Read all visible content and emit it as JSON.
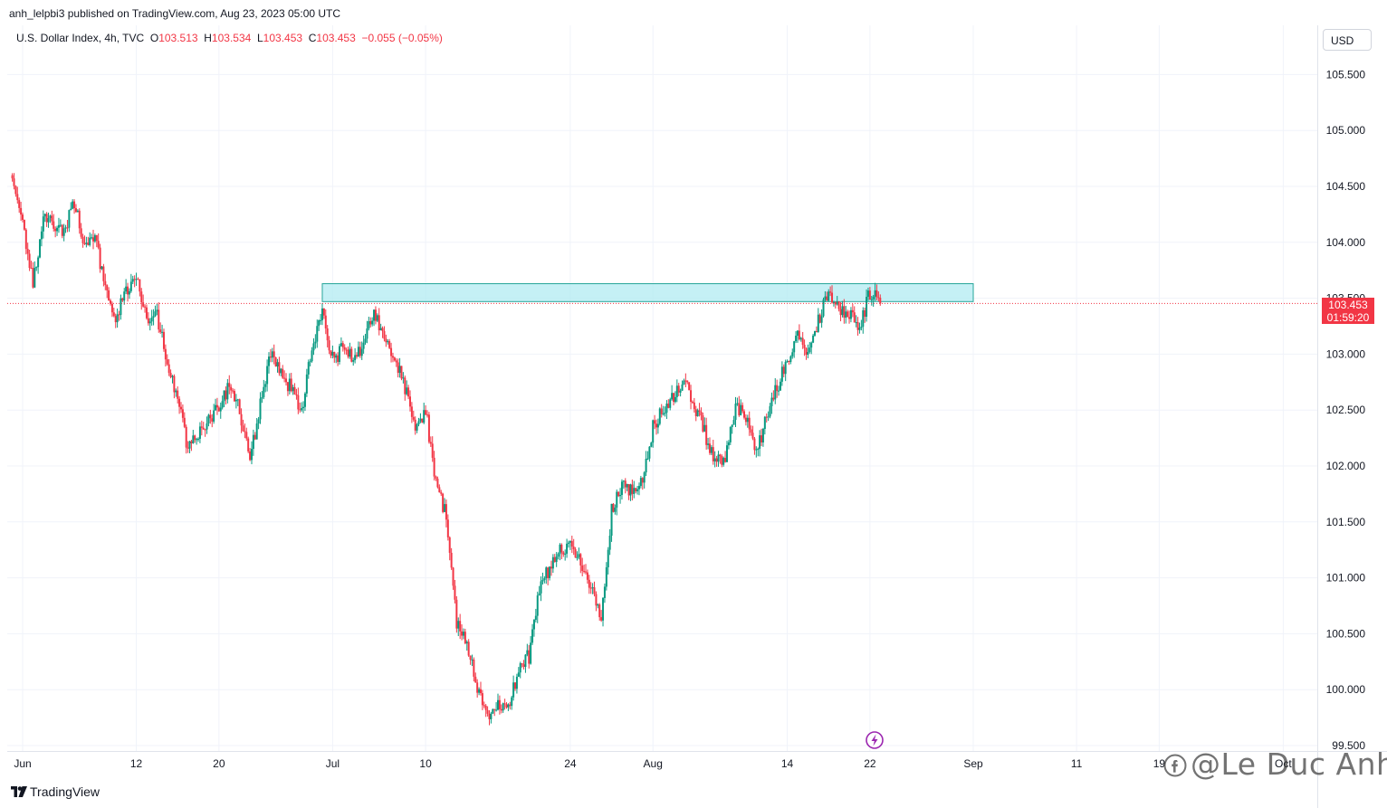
{
  "header": {
    "publisher_line": "anh_lelpbi3 published on TradingView.com, Aug 23, 2023 05:00 UTC"
  },
  "legend": {
    "symbol": "U.S. Dollar Index, 4h, TVC",
    "open_label": "O",
    "open": "103.513",
    "high_label": "H",
    "high": "103.534",
    "low_label": "L",
    "low": "103.453",
    "close_label": "C",
    "close": "103.453",
    "change": "−0.055 (−0.05%)"
  },
  "currency_button": "USD",
  "price_tag": {
    "price": "103.453",
    "countdown": "01:59:20"
  },
  "branding": {
    "logo_text": "TradingView",
    "watermark_text": "@Le Duc Anh"
  },
  "colors": {
    "up": "#089981",
    "down": "#f23645",
    "zone_fill": "#b2ebf2",
    "zone_border": "#26a69a",
    "grid": "#f0f3fa"
  },
  "icons": {
    "logo": "tradingview-logo-icon",
    "watermark": "facebook-icon",
    "event": "lightning-bolt-icon"
  },
  "chart_data": {
    "type": "candlestick",
    "timeframe": "4h",
    "y_ticks": [
      99.5,
      100.0,
      100.5,
      101.0,
      101.5,
      102.0,
      102.5,
      103.0,
      103.5,
      104.0,
      104.5,
      105.0,
      105.5
    ],
    "y_tick_labels": [
      "99.500",
      "100.000",
      "100.500",
      "101.000",
      "101.500",
      "102.000",
      "102.500",
      "103.000",
      "103.500",
      "104.000",
      "104.500",
      "105.000",
      "105.500"
    ],
    "ylim": [
      99.45,
      106.1
    ],
    "x_ticks": [
      "Jun",
      "12",
      "20",
      "Jul",
      "10",
      "24",
      "Aug",
      "14",
      "22",
      "Sep",
      "11",
      "19",
      "Oct"
    ],
    "x_tick_dates": [
      "2023-06-01",
      "2023-06-12",
      "2023-06-20",
      "2023-07-01",
      "2023-07-10",
      "2023-07-24",
      "2023-08-01",
      "2023-08-14",
      "2023-08-22",
      "2023-09-01",
      "2023-09-11",
      "2023-09-19",
      "2023-10-01"
    ],
    "last_price": 103.453,
    "resistance_zone": {
      "from": "2023-06-30",
      "to": "2023-09-01",
      "top": 103.63,
      "bottom": 103.47
    },
    "close_path": [
      [
        "2023-05-31",
        104.6
      ],
      [
        "2023-06-01",
        104.2
      ],
      [
        "2023-06-02",
        103.6
      ],
      [
        "2023-06-03",
        104.25
      ],
      [
        "2023-06-05",
        104.1
      ],
      [
        "2023-06-06",
        104.35
      ],
      [
        "2023-06-07",
        103.95
      ],
      [
        "2023-06-08",
        104.05
      ],
      [
        "2023-06-09",
        103.6
      ],
      [
        "2023-06-10",
        103.35
      ],
      [
        "2023-06-11",
        103.55
      ],
      [
        "2023-06-12",
        103.7
      ],
      [
        "2023-06-13",
        103.3
      ],
      [
        "2023-06-14",
        103.35
      ],
      [
        "2023-06-15",
        102.95
      ],
      [
        "2023-06-16",
        102.6
      ],
      [
        "2023-06-17",
        102.15
      ],
      [
        "2023-06-18",
        102.3
      ],
      [
        "2023-06-19",
        102.4
      ],
      [
        "2023-06-20",
        102.55
      ],
      [
        "2023-06-21",
        102.7
      ],
      [
        "2023-06-22",
        102.5
      ],
      [
        "2023-06-23",
        102.05
      ],
      [
        "2023-06-24",
        102.55
      ],
      [
        "2023-06-25",
        103.0
      ],
      [
        "2023-06-26",
        102.8
      ],
      [
        "2023-06-27",
        102.7
      ],
      [
        "2023-06-28",
        102.5
      ],
      [
        "2023-06-29",
        103.05
      ],
      [
        "2023-06-30",
        103.4
      ],
      [
        "2023-07-01",
        102.95
      ],
      [
        "2023-07-02",
        103.05
      ],
      [
        "2023-07-03",
        102.95
      ],
      [
        "2023-07-04",
        103.1
      ],
      [
        "2023-07-05",
        103.35
      ],
      [
        "2023-07-06",
        103.15
      ],
      [
        "2023-07-07",
        102.95
      ],
      [
        "2023-07-08",
        102.7
      ],
      [
        "2023-07-09",
        102.3
      ],
      [
        "2023-07-10",
        102.5
      ],
      [
        "2023-07-11",
        101.85
      ],
      [
        "2023-07-12",
        101.55
      ],
      [
        "2023-07-13",
        100.6
      ],
      [
        "2023-07-14",
        100.4
      ],
      [
        "2023-07-15",
        100.0
      ],
      [
        "2023-07-16",
        99.75
      ],
      [
        "2023-07-17",
        99.9
      ],
      [
        "2023-07-18",
        99.8
      ],
      [
        "2023-07-19",
        100.2
      ],
      [
        "2023-07-20",
        100.3
      ],
      [
        "2023-07-21",
        100.9
      ],
      [
        "2023-07-22",
        101.1
      ],
      [
        "2023-07-23",
        101.25
      ],
      [
        "2023-07-24",
        101.3
      ],
      [
        "2023-07-25",
        101.15
      ],
      [
        "2023-07-26",
        100.9
      ],
      [
        "2023-07-27",
        100.6
      ],
      [
        "2023-07-28",
        101.6
      ],
      [
        "2023-07-29",
        101.85
      ],
      [
        "2023-07-30",
        101.75
      ],
      [
        "2023-07-31",
        101.9
      ],
      [
        "2023-08-01",
        102.35
      ],
      [
        "2023-08-02",
        102.5
      ],
      [
        "2023-08-03",
        102.6
      ],
      [
        "2023-08-04",
        102.75
      ],
      [
        "2023-08-05",
        102.55
      ],
      [
        "2023-08-06",
        102.3
      ],
      [
        "2023-08-07",
        102.0
      ],
      [
        "2023-08-08",
        102.1
      ],
      [
        "2023-08-09",
        102.55
      ],
      [
        "2023-08-10",
        102.45
      ],
      [
        "2023-08-11",
        102.1
      ],
      [
        "2023-08-12",
        102.45
      ],
      [
        "2023-08-13",
        102.7
      ],
      [
        "2023-08-14",
        102.95
      ],
      [
        "2023-08-15",
        103.2
      ],
      [
        "2023-08-16",
        103.0
      ],
      [
        "2023-08-17",
        103.3
      ],
      [
        "2023-08-18",
        103.55
      ],
      [
        "2023-08-19",
        103.4
      ],
      [
        "2023-08-20",
        103.35
      ],
      [
        "2023-08-21",
        103.25
      ],
      [
        "2023-08-22",
        103.55
      ],
      [
        "2023-08-23",
        103.453
      ]
    ]
  }
}
